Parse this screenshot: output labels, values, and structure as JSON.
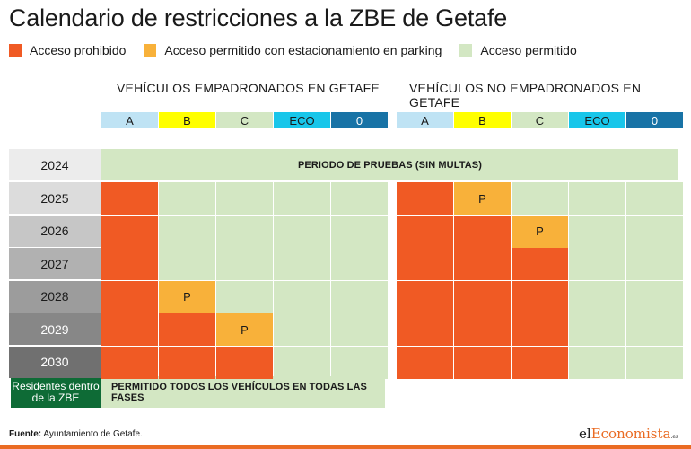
{
  "title": "Calendario de restricciones a la ZBE de Getafe",
  "legend": [
    {
      "label": "Acceso prohibido",
      "color": "#f05a24"
    },
    {
      "label": "Acceso permitido con estacionamiento en parking",
      "color": "#f8b13a"
    },
    {
      "label": "Acceso permitido",
      "color": "#d3e7c3"
    }
  ],
  "colors": {
    "prohibited": "#f05a24",
    "parking": "#f8b13a",
    "allowed": "#d3e7c3",
    "residents": "#0e6b36",
    "brand": "#ea6b23"
  },
  "chart_data": {
    "type": "table",
    "groups": [
      "VEHÍCULOS EMPADRONADOS EN GETAFE",
      "VEHÍCULOS NO EMPADRONADOS EN GETAFE"
    ],
    "labels": [
      "A",
      "B",
      "C",
      "ECO",
      "0"
    ],
    "label_colors": [
      "#bfe3f4",
      "#ffff00",
      "#d3e7c3",
      "#18c6ea",
      "#1873a6"
    ],
    "trial_year": "2024",
    "trial_text": "PERIODO DE PRUEBAS (SIN MULTAS)",
    "years": [
      "2025",
      "2026",
      "2027",
      "2028",
      "2029",
      "2030"
    ],
    "year_colors": [
      "#dcdcdc",
      "#c6c6c6",
      "#b1b1b1",
      "#9c9c9c",
      "#878787",
      "#707070"
    ],
    "legend_codes": {
      "X": "Acceso prohibido",
      "P": "Acceso permitido con estacionamiento en parking",
      "-": "Acceso permitido"
    },
    "empadronados": [
      [
        "X",
        "-",
        "-",
        "-",
        "-"
      ],
      [
        "X",
        "-",
        "-",
        "-",
        "-"
      ],
      [
        "X",
        "-",
        "-",
        "-",
        "-"
      ],
      [
        "X",
        "P",
        "-",
        "-",
        "-"
      ],
      [
        "X",
        "X",
        "P",
        "-",
        "-"
      ],
      [
        "X",
        "X",
        "X",
        "-",
        "-"
      ]
    ],
    "no_empadronados": [
      [
        "X",
        "P",
        "-",
        "-",
        "-"
      ],
      [
        "X",
        "X",
        "P",
        "-",
        "-"
      ],
      [
        "X",
        "X",
        "X",
        "-",
        "-"
      ],
      [
        "X",
        "X",
        "X",
        "-",
        "-"
      ],
      [
        "X",
        "X",
        "X",
        "-",
        "-"
      ],
      [
        "X",
        "X",
        "X",
        "-",
        "-"
      ]
    ],
    "parking_mark": "P",
    "residents_label": "Residentes dentro de la ZBE",
    "residents_text": "PERMITIDO TODOS LOS VEHÍCULOS EN TODAS LAS FASES"
  },
  "footer": {
    "source_label": "Fuente:",
    "source_text": " Ayuntamiento de Getafe.",
    "logo_pre": "el",
    "logo_accent": "Economista",
    "logo_suffix": ".es"
  }
}
